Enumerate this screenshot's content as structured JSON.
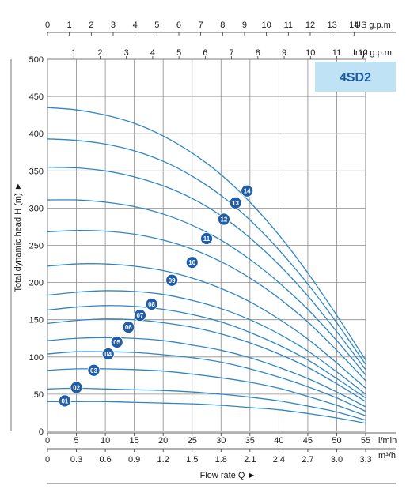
{
  "chart_data": {
    "type": "line",
    "model_label": "4SD2",
    "colors": {
      "curve": "#2f86c6",
      "badge": "#1f5da8",
      "model_box": "#bfe3f5",
      "model_text": "#1a5aa8",
      "grid": "#8c8c8c"
    },
    "xlabel": "Flow rate Q ►",
    "ylabel": "Total dynamic head H (m) ►",
    "x_axes": {
      "lmin": {
        "unit": "l/min",
        "ticks": [
          "0",
          "5",
          "10",
          "15",
          "20",
          "25",
          "30",
          "35",
          "40",
          "45",
          "50",
          "55"
        ],
        "range": [
          0,
          55
        ]
      },
      "m3h": {
        "unit": "m³/h",
        "ticks": [
          "0",
          "0.3",
          "0.6",
          "0.9",
          "1.2",
          "1.5",
          "1.8",
          "2.1",
          "2.4",
          "2.7",
          "3.0",
          "3.3"
        ],
        "range": [
          0,
          3.3
        ]
      },
      "us_gpm": {
        "unit": "US g.p.m",
        "ticks": [
          "0",
          "1",
          "2",
          "3",
          "4",
          "5",
          "6",
          "7",
          "8",
          "9",
          "10",
          "11",
          "12",
          "13",
          "14"
        ],
        "step_lmin": 3.785
      },
      "imp_gpm": {
        "unit": "Imp g.p.m",
        "ticks": [
          "1",
          "2",
          "3",
          "4",
          "5",
          "6",
          "7",
          "8",
          "9",
          "10",
          "11",
          "12"
        ],
        "step_lmin": 4.546
      }
    },
    "y_ticks": [
      "0",
      "50",
      "100",
      "150",
      "200",
      "250",
      "300",
      "350",
      "400",
      "450",
      "500"
    ],
    "ylim": [
      0,
      500
    ],
    "grid": true,
    "series": [
      {
        "name": "01",
        "x": [
          0,
          5,
          10,
          15,
          20,
          25,
          30,
          35,
          40,
          45,
          50,
          55
        ],
        "y": [
          40,
          40,
          40,
          39,
          38,
          37,
          35,
          32,
          29,
          24,
          18,
          11
        ],
        "label_at": [
          3,
          41
        ]
      },
      {
        "name": "02",
        "x": [
          0,
          5,
          10,
          15,
          20,
          25,
          30,
          35,
          40,
          45,
          50,
          55
        ],
        "y": [
          57,
          58,
          57,
          56,
          55,
          53,
          50,
          46,
          41,
          34,
          26,
          15
        ],
        "label_at": [
          5,
          59
        ]
      },
      {
        "name": "03",
        "x": [
          0,
          5,
          10,
          15,
          20,
          25,
          30,
          35,
          40,
          45,
          50,
          55
        ],
        "y": [
          82,
          84,
          84,
          83,
          81,
          77,
          72,
          66,
          58,
          47,
          35,
          21
        ],
        "label_at": [
          8,
          82
        ]
      },
      {
        "name": "04",
        "x": [
          0,
          5,
          10,
          15,
          20,
          25,
          30,
          35,
          40,
          45,
          50,
          55
        ],
        "y": [
          104,
          107,
          107,
          106,
          103,
          99,
          93,
          84,
          73,
          60,
          45,
          27
        ],
        "label_at": [
          10.5,
          104
        ]
      },
      {
        "name": "05",
        "x": [
          0,
          5,
          10,
          15,
          20,
          25,
          30,
          35,
          40,
          45,
          50,
          55
        ],
        "y": [
          122,
          125,
          126,
          125,
          122,
          116,
          109,
          99,
          86,
          71,
          53,
          33
        ],
        "label_at": [
          12,
          120
        ]
      },
      {
        "name": "06",
        "x": [
          0,
          5,
          10,
          15,
          20,
          25,
          30,
          35,
          40,
          45,
          50,
          55
        ],
        "y": [
          145,
          149,
          151,
          150,
          146,
          140,
          131,
          119,
          104,
          86,
          64,
          40
        ],
        "label_at": [
          14,
          140
        ]
      },
      {
        "name": "07",
        "x": [
          0,
          5,
          10,
          15,
          20,
          25,
          30,
          35,
          40,
          45,
          50,
          55
        ],
        "y": [
          163,
          167,
          169,
          168,
          164,
          157,
          147,
          133,
          116,
          96,
          71,
          45
        ],
        "label_at": [
          16,
          156
        ]
      },
      {
        "name": "08",
        "x": [
          0,
          5,
          10,
          15,
          20,
          25,
          30,
          35,
          40,
          45,
          50,
          55
        ],
        "y": [
          183,
          187,
          189,
          188,
          184,
          176,
          165,
          150,
          131,
          108,
          80,
          50
        ],
        "label_at": [
          18,
          171
        ]
      },
      {
        "name": "09",
        "x": [
          0,
          5,
          10,
          15,
          20,
          25,
          30,
          35,
          40,
          45,
          50,
          55
        ],
        "y": [
          222,
          225,
          225,
          222,
          216,
          206,
          192,
          174,
          151,
          124,
          92,
          58
        ],
        "label_at": [
          21.5,
          203
        ]
      },
      {
        "name": "10",
        "x": [
          0,
          5,
          10,
          15,
          20,
          25,
          30,
          35,
          40,
          45,
          50,
          55
        ],
        "y": [
          268,
          270,
          269,
          265,
          257,
          245,
          228,
          206,
          179,
          147,
          109,
          68
        ],
        "label_at": [
          25,
          227
        ]
      },
      {
        "name": "11",
        "x": [
          0,
          5,
          10,
          15,
          20,
          25,
          30,
          35,
          40,
          45,
          50,
          55
        ],
        "y": [
          311,
          311,
          308,
          302,
          292,
          277,
          257,
          231,
          200,
          164,
          122,
          76
        ],
        "label_at": [
          27.5,
          259
        ]
      },
      {
        "name": "12",
        "x": [
          0,
          5,
          10,
          15,
          20,
          25,
          30,
          35,
          40,
          45,
          50,
          55
        ],
        "y": [
          355,
          354,
          350,
          342,
          330,
          313,
          290,
          260,
          224,
          182,
          134,
          83
        ],
        "label_at": [
          30.5,
          285
        ]
      },
      {
        "name": "13",
        "x": [
          0,
          5,
          10,
          15,
          20,
          25,
          30,
          35,
          40,
          45,
          50,
          55
        ],
        "y": [
          393,
          391,
          386,
          377,
          363,
          343,
          317,
          284,
          244,
          198,
          146,
          90
        ],
        "label_at": [
          32.5,
          307
        ]
      },
      {
        "name": "14",
        "x": [
          0,
          5,
          10,
          15,
          20,
          25,
          30,
          35,
          40,
          45,
          50,
          55
        ],
        "y": [
          435,
          432,
          425,
          414,
          397,
          374,
          345,
          308,
          264,
          213,
          156,
          96
        ],
        "label_at": [
          34.5,
          323
        ]
      }
    ]
  }
}
